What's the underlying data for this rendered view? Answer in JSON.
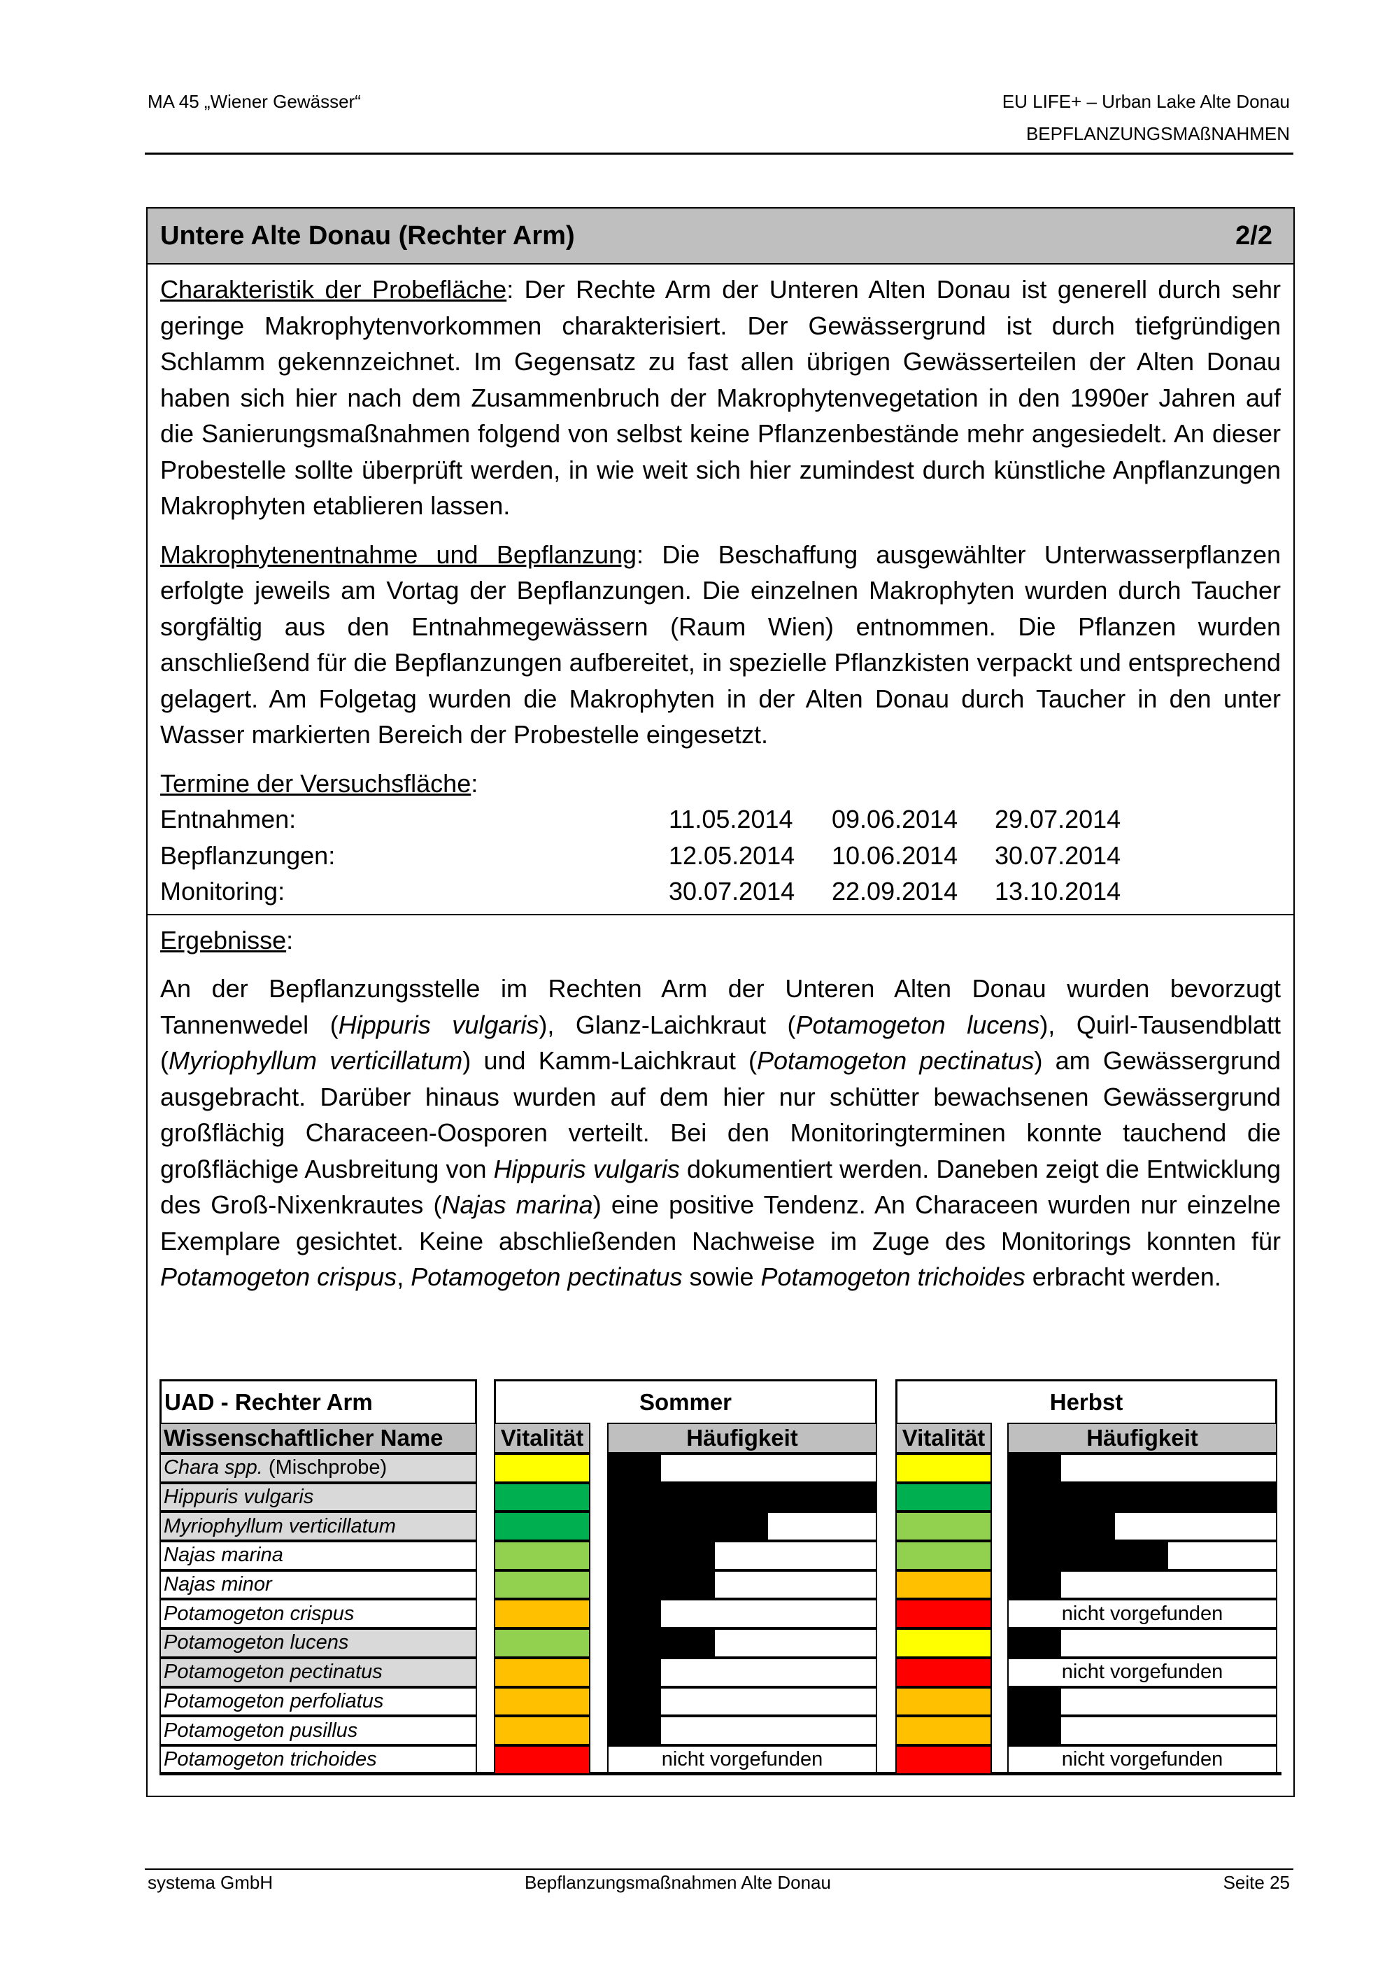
{
  "header": {
    "left": "MA 45 „Wiener Gewässer“",
    "right_line1": "EU LIFE+ – Urban Lake Alte Donau",
    "right_line2": "BEPFLANZUNGSMAßNAHMEN"
  },
  "section": {
    "title": "Untere Alte Donau (Rechter Arm)",
    "page_of": "2/2"
  },
  "charakteristik": {
    "label": "Charakteristik der Probefläche",
    "text": ": Der Rechte Arm der Unteren Alten Donau ist generell durch sehr geringe Makrophytenvorkommen charakterisiert. Der Gewässergrund ist durch tiefgründigen Schlamm gekennzeichnet. Im Gegensatz zu fast allen übrigen Gewässerteilen der Alten Donau haben sich hier nach dem Zusammenbruch der Makrophytenvegetation in den 1990er Jahren auf die Sanierungsmaßnahmen folgend von selbst keine Pflanzenbestände mehr angesiedelt. An dieser Probestelle sollte überprüft werden, in wie weit sich hier zumindest durch künstliche Anpflanzungen Makrophyten etablieren lassen."
  },
  "entnahme": {
    "label": "Makrophytenentnahme und Bepflanzung",
    "text": ": Die Beschaffung ausgewählter Unterwasserpflanzen erfolgte jeweils am Vortag der Bepflanzungen. Die einzelnen Makrophyten wurden durch Taucher sorgfältig aus den Entnahmegewässern (Raum Wien) entnommen. Die Pflanzen wurden anschließend für die Bepflanzungen aufbereitet, in spezielle Pflanzkisten verpackt und entsprechend gelagert. Am Folgetag wurden die Makrophyten in der Alten Donau durch Taucher in den unter Wasser markierten Bereich der Probestelle eingesetzt."
  },
  "termine": {
    "label": "Termine der Versuchsfläche",
    "rows": [
      {
        "label": "Entnahmen:",
        "dates": [
          "11.05.2014",
          "09.06.2014",
          "29.07.2014"
        ]
      },
      {
        "label": "Bepflanzungen:",
        "dates": [
          "12.05.2014",
          "10.06.2014",
          "30.07.2014"
        ]
      },
      {
        "label": "Monitoring:",
        "dates": [
          "30.07.2014",
          "22.09.2014",
          "13.10.2014"
        ]
      }
    ]
  },
  "ergebnisse": {
    "label": "Ergebnisse",
    "html": "An der Bepflanzungsstelle im Rechten Arm der Unteren Alten Donau wurden bevorzugt Tannenwedel (<i>Hippuris vulgaris</i>), Glanz-Laichkraut (<i>Potamogeton lucens</i>), Quirl-Tausendblatt (<i>Myriophyllum verticillatum</i>) und Kamm-Laichkraut (<i>Potamogeton pectinatus</i>) am Gewässergrund ausgebracht. Darüber hinaus wurden auf dem hier nur schütter bewachsenen Gewässergrund großflächig Characeen-Oosporen verteilt. Bei den Monitoringterminen konnte tauchend die großflächige Ausbreitung von <i>Hippuris vulgaris</i> dokumentiert werden. Daneben zeigt die Entwicklung des Groß-Nixenkrautes (<i>Najas marina</i>) eine positive Tendenz. An Characeen wurden nur einzelne Exemplare gesichtet. Keine abschließenden Nachweise im Zuge des Monitorings konnten für <i>Potamogeton crispus</i>, <i>Potamogeton pectinatus</i> sowie <i>Potamogeton trichoides</i> erbracht werden."
  },
  "table": {
    "title": "UAD - Rechter Arm",
    "season1": "Sommer",
    "season2": "Herbst",
    "col_name": "Wissenschaftlicher Name",
    "col_vit": "Vitalität",
    "col_freq": "Häufigkeit",
    "not_found": "nicht vorgefunden",
    "colors": {
      "yellow": "#FFFF00",
      "darkgreen": "#00B050",
      "lightgreen": "#92D050",
      "orange": "#FFC000",
      "red": "#FF0000"
    },
    "max_level": 5,
    "rows": [
      {
        "name": "Chara spp.",
        "suffix": " (Mischprobe)",
        "shaded": true,
        "sommer": {
          "vit": "yellow",
          "freq": 1
        },
        "herbst": {
          "vit": "yellow",
          "freq": 1
        }
      },
      {
        "name": "Hippuris vulgaris",
        "shaded": true,
        "sommer": {
          "vit": "darkgreen",
          "freq": 5
        },
        "herbst": {
          "vit": "darkgreen",
          "freq": 5
        }
      },
      {
        "name": "Myriophyllum verticillatum",
        "shaded": true,
        "sommer": {
          "vit": "darkgreen",
          "freq": 3
        },
        "herbst": {
          "vit": "lightgreen",
          "freq": 2
        }
      },
      {
        "name": "Najas marina",
        "shaded": false,
        "sommer": {
          "vit": "lightgreen",
          "freq": 2
        },
        "herbst": {
          "vit": "lightgreen",
          "freq": 3
        }
      },
      {
        "name": "Najas minor",
        "shaded": false,
        "sommer": {
          "vit": "lightgreen",
          "freq": 2
        },
        "herbst": {
          "vit": "orange",
          "freq": 1
        }
      },
      {
        "name": "Potamogeton crispus",
        "shaded": false,
        "sommer": {
          "vit": "orange",
          "freq": 1
        },
        "herbst": {
          "vit": "red",
          "freq": 0
        }
      },
      {
        "name": "Potamogeton lucens",
        "shaded": true,
        "sommer": {
          "vit": "lightgreen",
          "freq": 2
        },
        "herbst": {
          "vit": "yellow",
          "freq": 1
        }
      },
      {
        "name": "Potamogeton pectinatus",
        "shaded": true,
        "sommer": {
          "vit": "orange",
          "freq": 1
        },
        "herbst": {
          "vit": "red",
          "freq": 0
        }
      },
      {
        "name": "Potamogeton perfoliatus",
        "shaded": false,
        "sommer": {
          "vit": "orange",
          "freq": 1
        },
        "herbst": {
          "vit": "orange",
          "freq": 1
        }
      },
      {
        "name": "Potamogeton pusillus",
        "shaded": false,
        "sommer": {
          "vit": "orange",
          "freq": 1
        },
        "herbst": {
          "vit": "orange",
          "freq": 1
        }
      },
      {
        "name": "Potamogeton trichoides",
        "shaded": false,
        "sommer": {
          "vit": "red",
          "freq": 0
        },
        "herbst": {
          "vit": "red",
          "freq": 0
        }
      }
    ]
  },
  "footer": {
    "left": "systema GmbH",
    "center": "Bepflanzungsmaßnahmen Alte Donau",
    "right": "Seite 25"
  }
}
